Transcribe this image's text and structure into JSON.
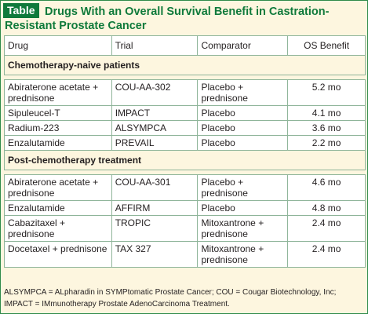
{
  "table_label": "Table",
  "title": "Drugs With an Overall Survival Benefit in Castration-Resistant Prostate Cancer",
  "title_line1": "Drugs With an Overall Survival Benefit in Castration-",
  "title_line2": "Resistant Prostate Cancer",
  "headers": {
    "drug": "Drug",
    "trial": "Trial",
    "comparator": "Comparator",
    "os_benefit": "OS Benefit"
  },
  "sections": [
    {
      "label": "Chemotherapy-naive patients",
      "rows": [
        {
          "drug": "Abiraterone acetate + prednisone",
          "trial": "COU-AA-302",
          "comparator": "Placebo + prednisone",
          "os_benefit": "5.2 mo"
        },
        {
          "drug": "Sipuleucel-T",
          "trial": "IMPACT",
          "comparator": "Placebo",
          "os_benefit": "4.1 mo"
        },
        {
          "drug": "Radium-223",
          "trial": "ALSYMPCA",
          "comparator": "Placebo",
          "os_benefit": "3.6 mo"
        },
        {
          "drug": "Enzalutamide",
          "trial": "PREVAIL",
          "comparator": "Placebo",
          "os_benefit": "2.2 mo"
        }
      ]
    },
    {
      "label": "Post-chemotherapy treatment",
      "rows": [
        {
          "drug": "Abiraterone acetate + prednisone",
          "trial": "COU-AA-301",
          "comparator": "Placebo + prednisone",
          "os_benefit": "4.6 mo"
        },
        {
          "drug": "Enzalutamide",
          "trial": "AFFIRM",
          "comparator": "Placebo",
          "os_benefit": "4.8 mo"
        },
        {
          "drug": "Cabazitaxel + prednisone",
          "trial": "TROPIC",
          "comparator": "Mitoxantrone + prednisone",
          "os_benefit": "2.4 mo"
        },
        {
          "drug": "Docetaxel + prednisone",
          "trial": "TAX 327",
          "comparator": "Mitoxantrone + prednisone",
          "os_benefit": "2.4 mo"
        }
      ]
    }
  ],
  "footnote": "ALSYMPCA = ALpharadin in SYMPtomatic Prostate Cancer; COU = Cougar Biotechnology, Inc; IMPACT = IMmunotherapy Prostate AdenoCarcinoma Treatment.",
  "colors": {
    "accent": "#0f7a3b",
    "background": "#fdf6df",
    "border": "#8fb59a"
  }
}
